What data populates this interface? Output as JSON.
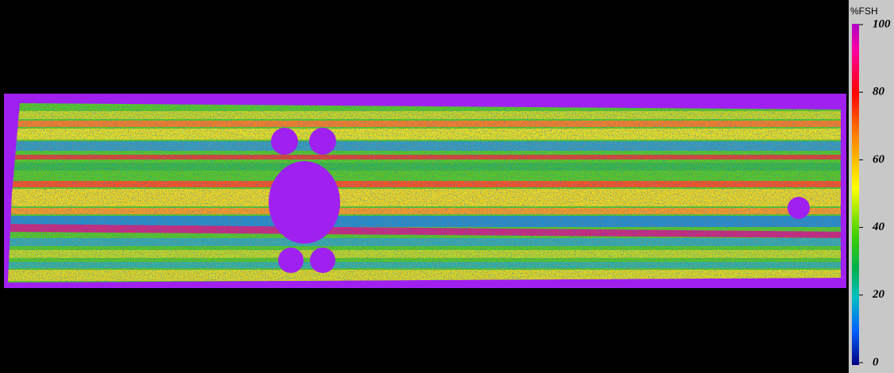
{
  "colorbar": {
    "label": "%FSH",
    "range": [
      0,
      100
    ],
    "ticks": [
      0,
      20,
      40,
      60,
      80,
      100
    ]
  }
}
